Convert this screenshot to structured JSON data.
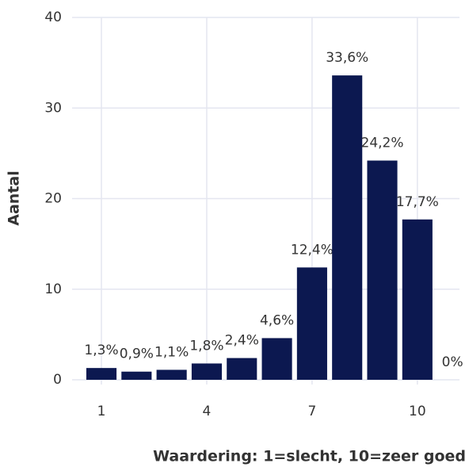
{
  "chart_data": {
    "type": "bar",
    "x": [
      1,
      2,
      3,
      4,
      5,
      6,
      7,
      8,
      9,
      10,
      11
    ],
    "values": [
      1.3,
      0.9,
      1.1,
      1.8,
      2.4,
      4.6,
      12.4,
      33.6,
      24.2,
      17.7,
      0
    ],
    "value_labels": [
      "1,3%",
      "0,9%",
      "1,1%",
      "1,8%",
      "2,4%",
      "4,6%",
      "12,4%",
      "33,6%",
      "24,2%",
      "17,7%",
      "0%"
    ],
    "color": "#0c1850",
    "xlabel": "Waardering: 1=slecht, 10=zeer goed",
    "ylabel": "Aantal",
    "xlim": [
      0.3,
      11.2
    ],
    "xticks": [
      1,
      4,
      7,
      10
    ],
    "ylim": [
      0,
      40
    ],
    "yticks": [
      0,
      10,
      20,
      30,
      40
    ],
    "grid": true
  }
}
